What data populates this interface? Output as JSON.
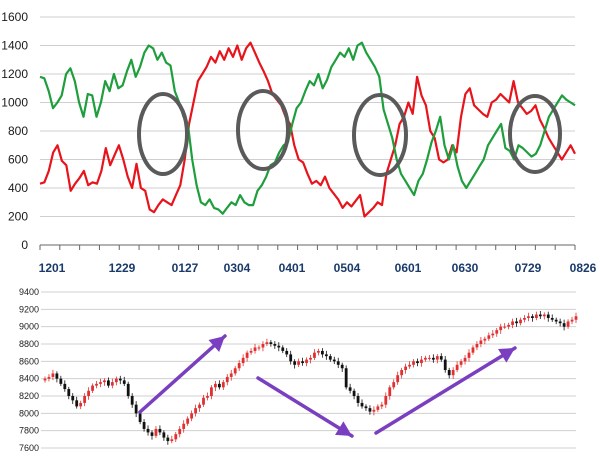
{
  "chart_data": [
    {
      "type": "line",
      "x_ticks": [
        "1201",
        "1229",
        "0127",
        "0304",
        "0401",
        "0504",
        "0601",
        "0630",
        "0729",
        "0826"
      ],
      "ylim": [
        0,
        1600
      ],
      "y_ticks": [
        0,
        200,
        400,
        600,
        800,
        1000,
        1200,
        1400,
        1600
      ],
      "grid": true,
      "series": [
        {
          "color": "#e8141b",
          "values": [
            430,
            440,
            520,
            650,
            700,
            590,
            560,
            380,
            430,
            470,
            520,
            420,
            440,
            430,
            520,
            680,
            560,
            630,
            700,
            600,
            480,
            400,
            570,
            400,
            380,
            250,
            230,
            280,
            320,
            300,
            280,
            350,
            420,
            600,
            850,
            1000,
            1150,
            1200,
            1250,
            1320,
            1280,
            1360,
            1300,
            1380,
            1320,
            1400,
            1300,
            1380,
            1420,
            1350,
            1280,
            1220,
            1150,
            1060,
            1020,
            980,
            900,
            850,
            700,
            600,
            580,
            500,
            430,
            450,
            420,
            480,
            400,
            360,
            320,
            260,
            300,
            270,
            310,
            350,
            200,
            230,
            260,
            300,
            280,
            500,
            600,
            700,
            850,
            900,
            1000,
            920,
            1180,
            1050,
            980,
            800,
            750,
            600,
            580,
            600,
            700,
            650,
            900,
            1060,
            1100,
            980,
            950,
            920,
            900,
            1000,
            1020,
            1060,
            1030,
            1000,
            1150,
            1000,
            960,
            920,
            940,
            980,
            880,
            820,
            750,
            700,
            650,
            600,
            650,
            700,
            640
          ]
        },
        {
          "color": "#1e9e3c",
          "values": [
            1180,
            1170,
            1080,
            960,
            1000,
            1050,
            1200,
            1240,
            1150,
            1000,
            900,
            1060,
            1050,
            900,
            1000,
            1150,
            1080,
            1200,
            1100,
            1120,
            1220,
            1300,
            1180,
            1250,
            1350,
            1400,
            1380,
            1300,
            1350,
            1280,
            1260,
            1080,
            1000,
            900,
            850,
            600,
            420,
            300,
            280,
            320,
            260,
            250,
            220,
            260,
            300,
            280,
            350,
            300,
            280,
            280,
            380,
            420,
            480,
            560,
            580,
            650,
            700,
            720,
            850,
            960,
            1000,
            1080,
            1150,
            1120,
            1200,
            1100,
            1160,
            1250,
            1300,
            1350,
            1320,
            1380,
            1300,
            1400,
            1420,
            1350,
            1300,
            1250,
            1180,
            950,
            850,
            750,
            600,
            500,
            450,
            400,
            350,
            450,
            500,
            600,
            720,
            800,
            900,
            700,
            600,
            700,
            550,
            450,
            400,
            450,
            500,
            550,
            600,
            700,
            750,
            800,
            850,
            680,
            660,
            600,
            700,
            680,
            650,
            620,
            640,
            700,
            800,
            900,
            950,
            1000,
            1050,
            1020,
            1000,
            980
          ]
        }
      ],
      "annotations": [
        "circle-1",
        "circle-2",
        "circle-3",
        "circle-4"
      ]
    },
    {
      "type": "candlestick",
      "ylim": [
        7600,
        9400
      ],
      "y_ticks": [
        7600,
        7800,
        8000,
        8200,
        8400,
        8600,
        8800,
        9000,
        9200,
        9400
      ],
      "grid": true,
      "closes": [
        8400,
        8420,
        8460,
        8400,
        8340,
        8280,
        8200,
        8150,
        8080,
        8120,
        8200,
        8260,
        8320,
        8340,
        8360,
        8380,
        8320,
        8360,
        8400,
        8380,
        8340,
        8200,
        8100,
        8000,
        7900,
        7820,
        7780,
        7740,
        7820,
        7780,
        7720,
        7680,
        7700,
        7760,
        7820,
        7880,
        7940,
        8000,
        8060,
        8100,
        8180,
        8200,
        8300,
        8340,
        8300,
        8360,
        8420,
        8460,
        8520,
        8580,
        8640,
        8700,
        8720,
        8760,
        8760,
        8800,
        8820,
        8800,
        8780,
        8760,
        8720,
        8680,
        8600,
        8560,
        8600,
        8580,
        8620,
        8640,
        8700,
        8720,
        8680,
        8660,
        8620,
        8600,
        8560,
        8520,
        8300,
        8260,
        8200,
        8120,
        8080,
        8060,
        8020,
        8040,
        8080,
        8100,
        8200,
        8300,
        8360,
        8440,
        8500,
        8540,
        8560,
        8600,
        8580,
        8620,
        8640,
        8640,
        8620,
        8660,
        8620,
        8500,
        8440,
        8500,
        8560,
        8600,
        8640,
        8700,
        8760,
        8800,
        8840,
        8860,
        8900,
        8920,
        8960,
        9000,
        9000,
        9020,
        9060,
        9040,
        9080,
        9100,
        9120,
        9100,
        9140,
        9120,
        9140,
        9100,
        9080,
        9060,
        9040,
        9000,
        9060,
        9080,
        9120
      ],
      "arrows": [
        "up",
        "up",
        "down",
        "up"
      ]
    }
  ]
}
